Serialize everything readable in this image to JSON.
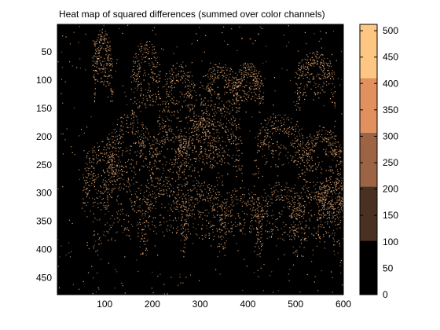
{
  "chart_data": {
    "type": "heatmap",
    "title": "Heat map of squared differences (summed over color channels)",
    "xlabel": "",
    "ylabel": "",
    "xlim": [
      1,
      600
    ],
    "ylim": [
      1,
      480
    ],
    "x_ticks": [
      100,
      200,
      300,
      400,
      500,
      600
    ],
    "y_ticks": [
      50,
      100,
      150,
      200,
      250,
      300,
      350,
      400,
      450
    ],
    "y_reversed": true,
    "background_color": "#000000",
    "structure_color": "#f2b07a",
    "colorbar": {
      "ticks": [
        0,
        50,
        100,
        150,
        200,
        250,
        300,
        350,
        400,
        450,
        500
      ],
      "range": [
        0,
        512
      ],
      "bands": [
        {
          "from": 0,
          "to": 102,
          "color": "#000000"
        },
        {
          "from": 102,
          "to": 205,
          "color": "#4a3020"
        },
        {
          "from": 205,
          "to": 307,
          "color": "#9c6444"
        },
        {
          "from": 307,
          "to": 410,
          "color": "#e2905e"
        },
        {
          "from": 410,
          "to": 512,
          "color": "#fdc783"
        }
      ]
    }
  }
}
